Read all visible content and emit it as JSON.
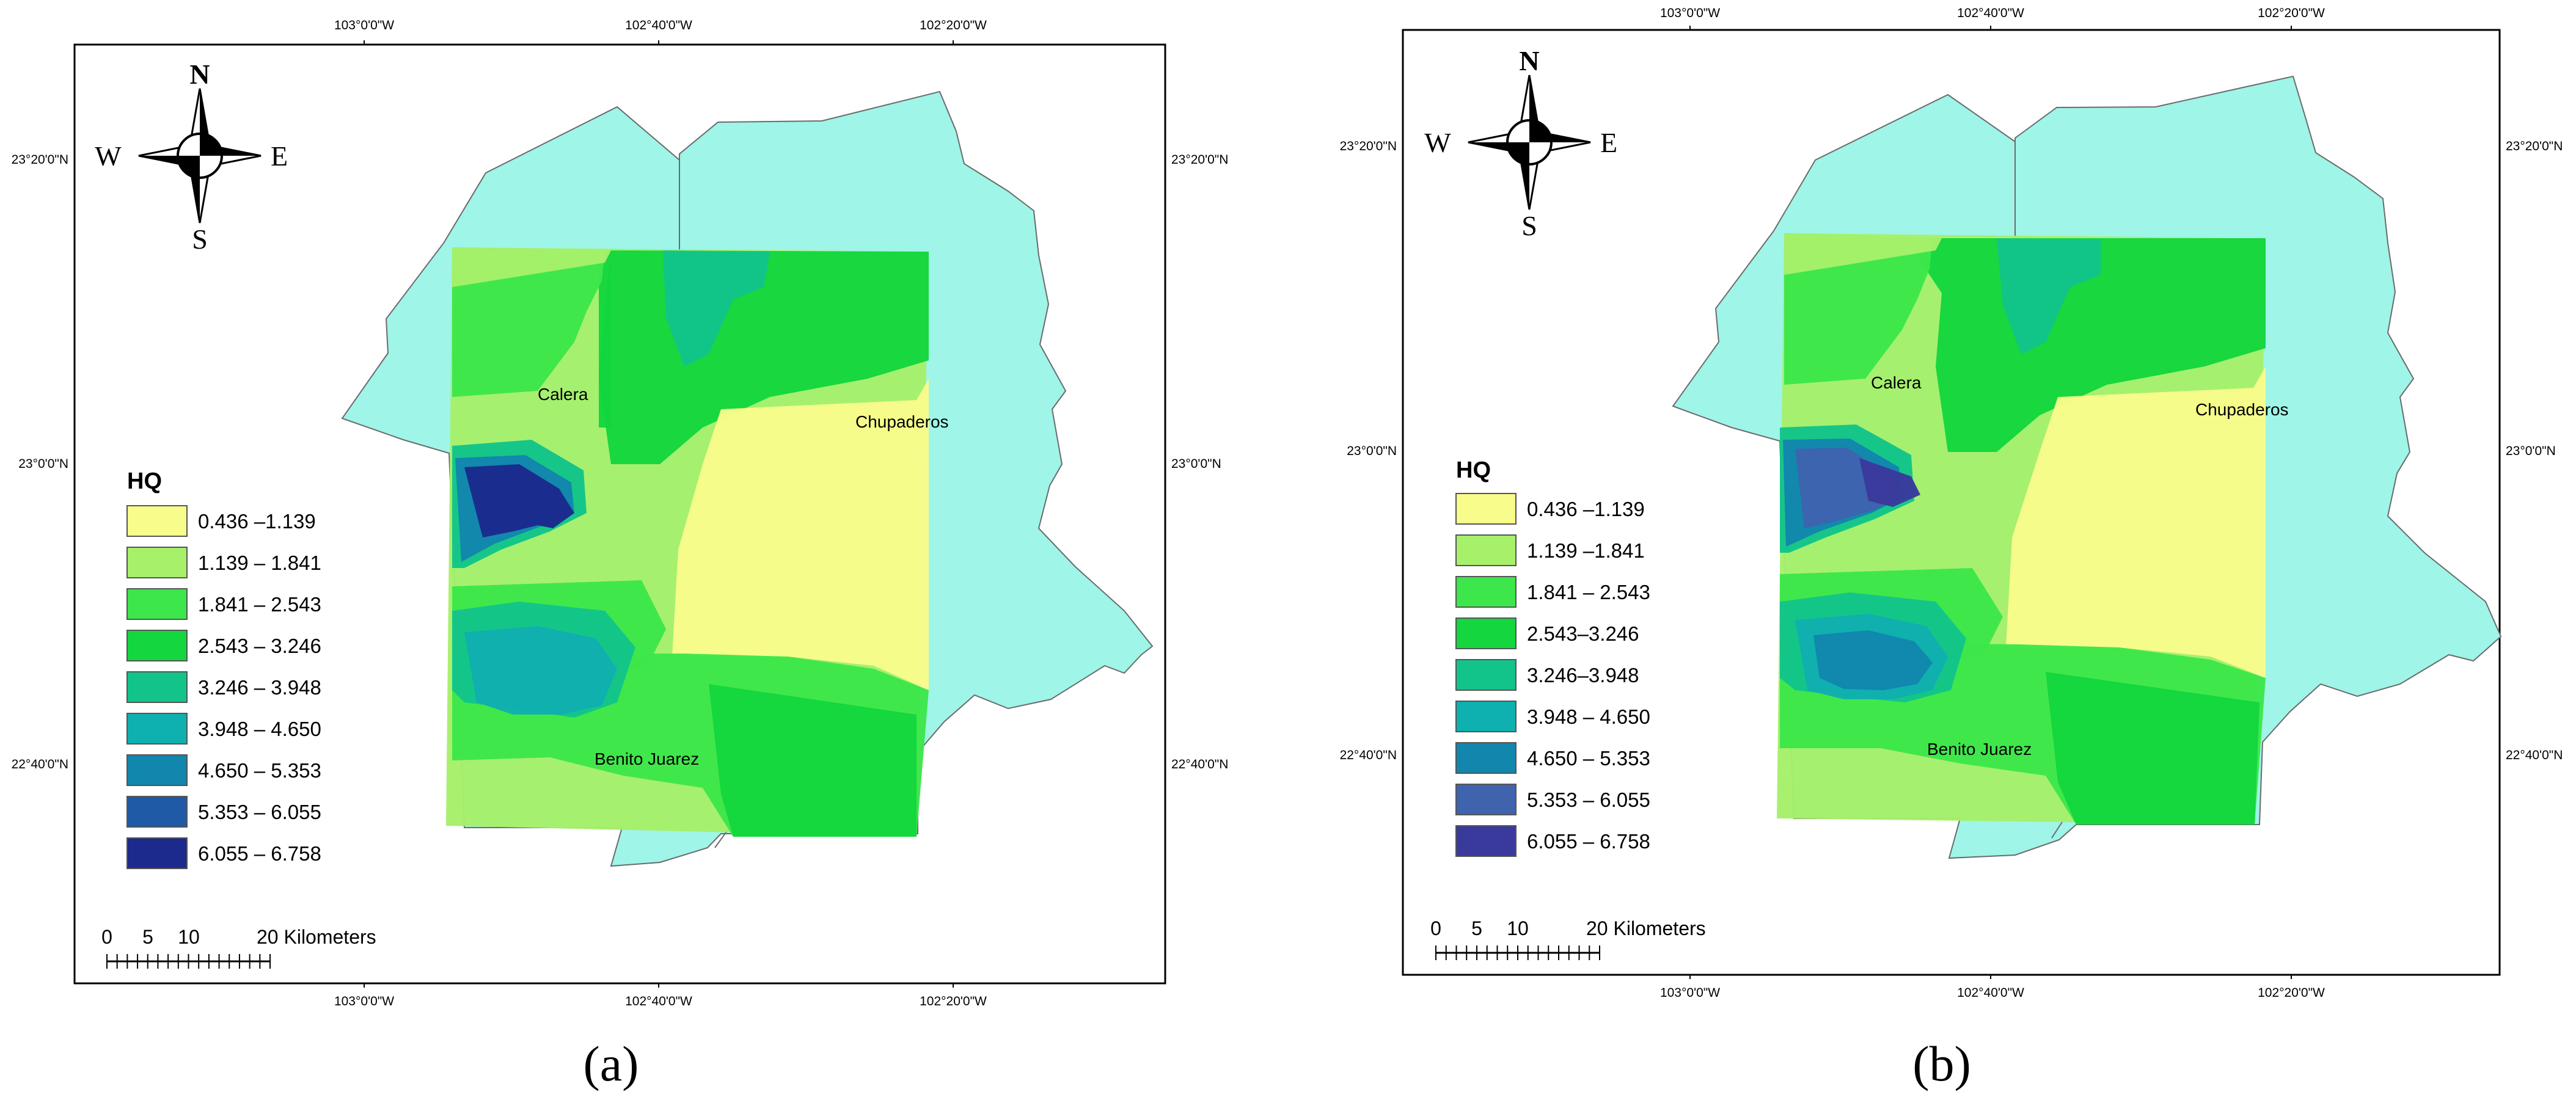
{
  "panels": [
    {
      "id": "a",
      "label": "(a)",
      "lon_labels": [
        "103°0'0\"W",
        "102°40'0\"W",
        "102°20'0\"W"
      ],
      "lat_labels": [
        "23°20'0\"N",
        "23°0'0\"N",
        "22°40'0\"N"
      ],
      "towns": [
        "Calera",
        "Chupaderos",
        "Benito Juarez"
      ],
      "compass": {
        "n": "N",
        "s": "S",
        "e": "E",
        "w": "W"
      },
      "legend": {
        "title": "HQ",
        "classes": [
          {
            "range": "0.436 –1.139",
            "color": "#f8fc8a"
          },
          {
            "range": "1.139 – 1.841",
            "color": "#a6f06a"
          },
          {
            "range": "1.841 – 2.543",
            "color": "#3de64a"
          },
          {
            "range": "2.543 – 3.246",
            "color": "#14d63e"
          },
          {
            "range": "3.246 – 3.948",
            "color": "#12c48a"
          },
          {
            "range": "3.948 – 4.650",
            "color": "#0fb0b0"
          },
          {
            "range": "4.650 – 5.353",
            "color": "#1286ad"
          },
          {
            "range": "5.353 – 6.055",
            "color": "#1f5aa6"
          },
          {
            "range": "6.055 – 6.758",
            "color": "#1b2a8c"
          }
        ]
      },
      "scale_bar": {
        "ticks": [
          "0",
          "5",
          "10"
        ],
        "end_label": "20 Kilometers"
      }
    },
    {
      "id": "b",
      "label": "(b)",
      "lon_labels": [
        "103°0'0\"W",
        "102°40'0\"W",
        "102°20'0\"W"
      ],
      "lat_labels": [
        "23°20'0\"N",
        "23°0'0\"N",
        "22°40'0\"N"
      ],
      "towns": [
        "Calera",
        "Chupaderos",
        "Benito Juarez"
      ],
      "compass": {
        "n": "N",
        "s": "S",
        "e": "E",
        "w": "W"
      },
      "legend": {
        "title": "HQ",
        "classes": [
          {
            "range": "0.436 –1.139",
            "color": "#f8fc8a"
          },
          {
            "range": "1.139 –1.841",
            "color": "#a6f06a"
          },
          {
            "range": "1.841 – 2.543",
            "color": "#3de64a"
          },
          {
            "range": "2.543–3.246",
            "color": "#14d63e"
          },
          {
            "range": "3.246–3.948",
            "color": "#12c48a"
          },
          {
            "range": "3.948 – 4.650",
            "color": "#0fb0b0"
          },
          {
            "range": "4.650 – 5.353",
            "color": "#1286ad"
          },
          {
            "range": "5.353 – 6.055",
            "color": "#3f63ad"
          },
          {
            "range": "6.055 – 6.758",
            "color": "#3a3a9c"
          }
        ]
      },
      "scale_bar": {
        "ticks": [
          "0",
          "5",
          "10"
        ],
        "end_label": "20 Kilometers"
      }
    }
  ],
  "colors": {
    "municipality_fill": "#9ef5e8",
    "boundary_line": "#6b6b6b"
  }
}
